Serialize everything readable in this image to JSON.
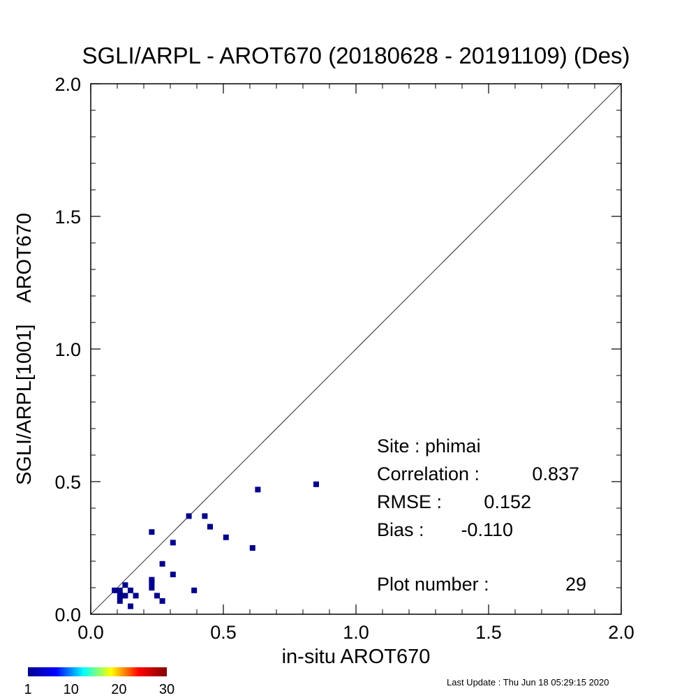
{
  "chart_data": {
    "type": "scatter",
    "title": "SGLI/ARPL - AROT670 (20180628 - 20191109) (Des)",
    "xlabel": "in-situ AROT670",
    "ylabel": "SGLI/ARPL[1001]    AROT670",
    "xlim": [
      0.0,
      2.0
    ],
    "ylim": [
      0.0,
      2.0
    ],
    "x_ticks": [
      "0.0",
      "0.5",
      "1.0",
      "1.5",
      "2.0"
    ],
    "y_ticks": [
      "0.0",
      "0.5",
      "1.0",
      "1.5",
      "2.0"
    ],
    "reference_line": "1:1",
    "grid": false,
    "marker_color": "#00008b",
    "points": [
      {
        "x": 0.09,
        "y": 0.09
      },
      {
        "x": 0.11,
        "y": 0.09
      },
      {
        "x": 0.13,
        "y": 0.11
      },
      {
        "x": 0.11,
        "y": 0.07
      },
      {
        "x": 0.11,
        "y": 0.05
      },
      {
        "x": 0.13,
        "y": 0.07
      },
      {
        "x": 0.15,
        "y": 0.09
      },
      {
        "x": 0.15,
        "y": 0.03
      },
      {
        "x": 0.17,
        "y": 0.07
      },
      {
        "x": 0.23,
        "y": 0.31
      },
      {
        "x": 0.23,
        "y": 0.13
      },
      {
        "x": 0.23,
        "y": 0.12
      },
      {
        "x": 0.23,
        "y": 0.1
      },
      {
        "x": 0.25,
        "y": 0.07
      },
      {
        "x": 0.27,
        "y": 0.19
      },
      {
        "x": 0.27,
        "y": 0.05
      },
      {
        "x": 0.31,
        "y": 0.27
      },
      {
        "x": 0.31,
        "y": 0.15
      },
      {
        "x": 0.37,
        "y": 0.37
      },
      {
        "x": 0.39,
        "y": 0.09
      },
      {
        "x": 0.43,
        "y": 0.37
      },
      {
        "x": 0.45,
        "y": 0.33
      },
      {
        "x": 0.51,
        "y": 0.29
      },
      {
        "x": 0.61,
        "y": 0.25
      },
      {
        "x": 0.63,
        "y": 0.47
      },
      {
        "x": 0.85,
        "y": 0.49
      }
    ],
    "stats": {
      "site": "Site : phimai",
      "correlation_label": "Correlation :",
      "correlation_value": "0.837",
      "rmse_label": "RMSE :",
      "rmse_value": "0.152",
      "bias_label": "Bias :",
      "bias_value": "-0.110",
      "plot_number_label": "Plot number :",
      "plot_number_value": "29"
    },
    "colorbar": {
      "colormap": "jet",
      "stops": [
        "#00008f",
        "#0000ff",
        "#00ffff",
        "#ffff00",
        "#ff0000",
        "#800000"
      ],
      "tick_labels": [
        "1",
        "10",
        "20",
        "30"
      ],
      "range": [
        1,
        30
      ]
    }
  },
  "footer": {
    "last_update": "Last Update : Thu Jun 18 05:29:15 2020"
  }
}
